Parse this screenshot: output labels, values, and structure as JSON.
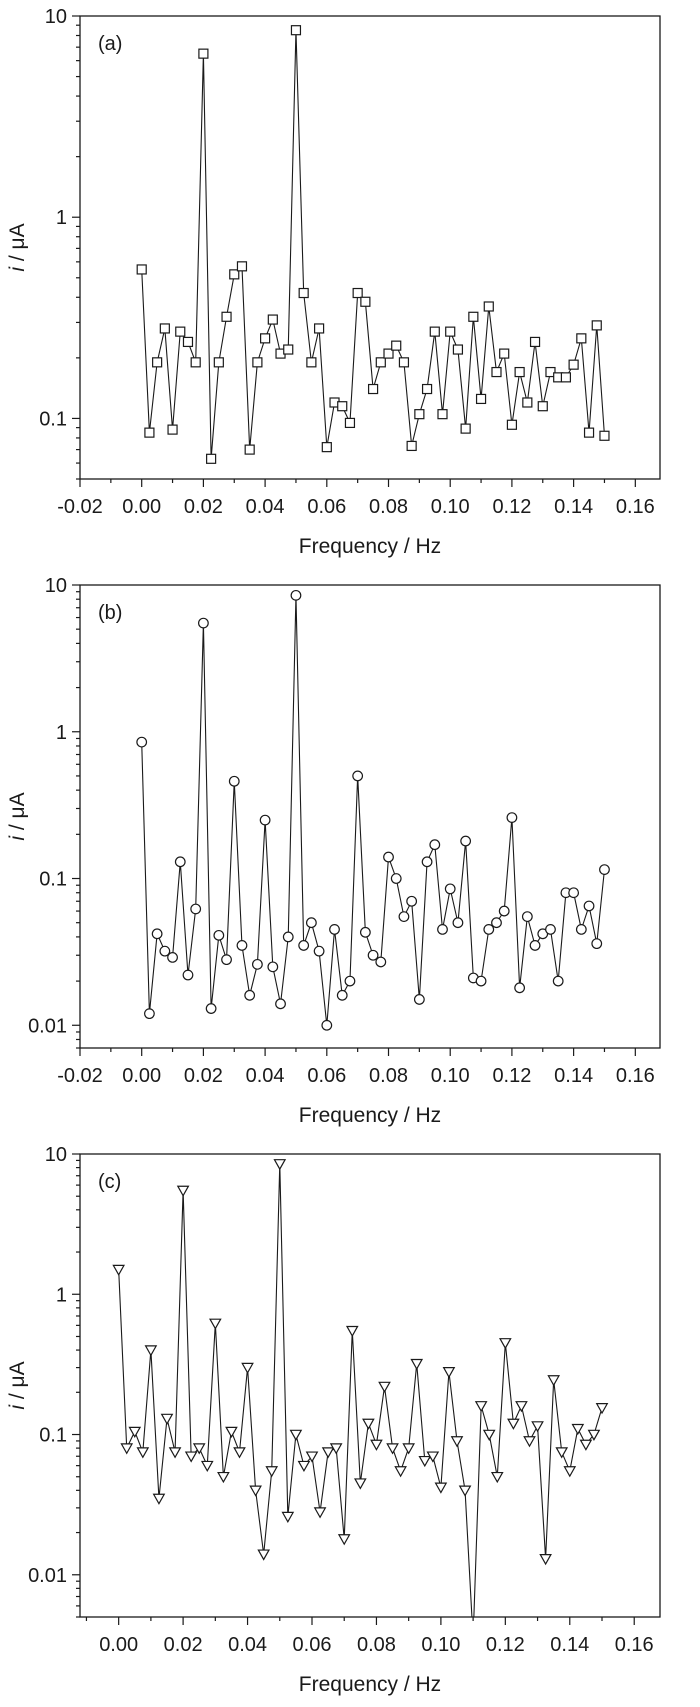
{
  "figure": {
    "background": "#ffffff",
    "line_color": "#1a1a1a",
    "marker_fill": "#ffffff"
  },
  "chart_data": [
    {
      "type": "line",
      "panel_label": "(a)",
      "marker": "square",
      "xlabel": "Frequency / Hz",
      "ylabel_italic": "i",
      "ylabel_rest": " / μA",
      "x_scale": "linear",
      "y_scale": "log",
      "grid": false,
      "legend": "none",
      "xlim": [
        -0.02,
        0.168
      ],
      "ylim": [
        0.05,
        10
      ],
      "x_ticks": [
        -0.02,
        0,
        0.02,
        0.04,
        0.06,
        0.08,
        0.1,
        0.12,
        0.14,
        0.16
      ],
      "x_tick_labels": [
        "-0.02",
        "0.00",
        "0.02",
        "0.04",
        "0.06",
        "0.08",
        "0.10",
        "0.12",
        "0.14",
        "0.16"
      ],
      "y_ticks": [
        0.1,
        1,
        10
      ],
      "y_tick_labels": [
        "0.1",
        "1",
        "10"
      ],
      "x": [
        0,
        0.0025,
        0.005,
        0.0075,
        0.01,
        0.0125,
        0.015,
        0.0175,
        0.02,
        0.0225,
        0.025,
        0.0275,
        0.03,
        0.0325,
        0.035,
        0.0375,
        0.04,
        0.0425,
        0.045,
        0.0475,
        0.05,
        0.0525,
        0.055,
        0.0575,
        0.06,
        0.0625,
        0.065,
        0.0675,
        0.07,
        0.0725,
        0.075,
        0.0775,
        0.08,
        0.0825,
        0.085,
        0.0875,
        0.09,
        0.0925,
        0.095,
        0.0975,
        0.1,
        0.1025,
        0.105,
        0.1075,
        0.11,
        0.1125,
        0.115,
        0.1175,
        0.12,
        0.1225,
        0.125,
        0.1275,
        0.13,
        0.1325,
        0.135,
        0.1375,
        0.14,
        0.1425,
        0.145,
        0.1475,
        0.15
      ],
      "y": [
        0.55,
        0.085,
        0.19,
        0.28,
        0.088,
        0.27,
        0.24,
        0.19,
        6.5,
        0.063,
        0.19,
        0.32,
        0.52,
        0.57,
        0.07,
        0.19,
        0.25,
        0.31,
        0.21,
        0.22,
        8.5,
        0.42,
        0.19,
        0.28,
        0.072,
        0.12,
        0.115,
        0.095,
        0.42,
        0.38,
        0.14,
        0.19,
        0.21,
        0.23,
        0.19,
        0.073,
        0.105,
        0.14,
        0.27,
        0.105,
        0.27,
        0.22,
        0.089,
        0.32,
        0.125,
        0.36,
        0.17,
        0.21,
        0.093,
        0.17,
        0.12,
        0.24,
        0.115,
        0.17,
        0.16,
        0.16,
        0.185,
        0.25,
        0.085,
        0.29,
        0.082
      ]
    },
    {
      "type": "line",
      "panel_label": "(b)",
      "marker": "circle",
      "xlabel": "Frequency / Hz",
      "ylabel_italic": "i",
      "ylabel_rest": " / μA",
      "x_scale": "linear",
      "y_scale": "log",
      "grid": false,
      "legend": "none",
      "xlim": [
        -0.02,
        0.168
      ],
      "ylim": [
        0.007,
        10
      ],
      "x_ticks": [
        -0.02,
        0,
        0.02,
        0.04,
        0.06,
        0.08,
        0.1,
        0.12,
        0.14,
        0.16
      ],
      "x_tick_labels": [
        "-0.02",
        "0.00",
        "0.02",
        "0.04",
        "0.06",
        "0.08",
        "0.10",
        "0.12",
        "0.14",
        "0.16"
      ],
      "y_ticks": [
        0.01,
        0.1,
        1,
        10
      ],
      "y_tick_labels": [
        "0.01",
        "0.1",
        "1",
        "10"
      ],
      "x": [
        0,
        0.0025,
        0.005,
        0.0075,
        0.01,
        0.0125,
        0.015,
        0.0175,
        0.02,
        0.0225,
        0.025,
        0.0275,
        0.03,
        0.0325,
        0.035,
        0.0375,
        0.04,
        0.0425,
        0.045,
        0.0475,
        0.05,
        0.0525,
        0.055,
        0.0575,
        0.06,
        0.0625,
        0.065,
        0.0675,
        0.07,
        0.0725,
        0.075,
        0.0775,
        0.08,
        0.0825,
        0.085,
        0.0875,
        0.09,
        0.0925,
        0.095,
        0.0975,
        0.1,
        0.1025,
        0.105,
        0.1075,
        0.11,
        0.1125,
        0.115,
        0.1175,
        0.12,
        0.1225,
        0.125,
        0.1275,
        0.13,
        0.1325,
        0.135,
        0.1375,
        0.14,
        0.1425,
        0.145,
        0.1475,
        0.15
      ],
      "y": [
        0.85,
        0.012,
        0.042,
        0.032,
        0.029,
        0.13,
        0.022,
        0.062,
        5.5,
        0.013,
        0.041,
        0.028,
        0.46,
        0.035,
        0.016,
        0.026,
        0.25,
        0.025,
        0.014,
        0.04,
        8.5,
        0.035,
        0.05,
        0.032,
        0.01,
        0.045,
        0.016,
        0.02,
        0.5,
        0.043,
        0.03,
        0.027,
        0.14,
        0.1,
        0.055,
        0.07,
        0.015,
        0.13,
        0.17,
        0.045,
        0.085,
        0.05,
        0.18,
        0.021,
        0.02,
        0.045,
        0.05,
        0.06,
        0.26,
        0.018,
        0.055,
        0.035,
        0.042,
        0.045,
        0.02,
        0.08,
        0.08,
        0.045,
        0.065,
        0.036,
        0.115
      ]
    },
    {
      "type": "line",
      "panel_label": "(c)",
      "marker": "triangle-down",
      "xlabel": "Frequency / Hz",
      "ylabel_italic": "i",
      "ylabel_rest": " / μA",
      "x_scale": "linear",
      "y_scale": "log",
      "grid": false,
      "legend": "none",
      "xlim": [
        -0.012,
        0.168
      ],
      "ylim": [
        0.005,
        10
      ],
      "x_ticks": [
        0,
        0.02,
        0.04,
        0.06,
        0.08,
        0.1,
        0.12,
        0.14,
        0.16
      ],
      "x_tick_labels": [
        "0.00",
        "0.02",
        "0.04",
        "0.06",
        "0.08",
        "0.10",
        "0.12",
        "0.14",
        "0.16"
      ],
      "y_ticks": [
        0.01,
        0.1,
        1,
        10
      ],
      "y_tick_labels": [
        "0.01",
        "0.1",
        "1",
        "10"
      ],
      "x": [
        0,
        0.0025,
        0.005,
        0.0075,
        0.01,
        0.0125,
        0.015,
        0.0175,
        0.02,
        0.0225,
        0.025,
        0.0275,
        0.03,
        0.0325,
        0.035,
        0.0375,
        0.04,
        0.0425,
        0.045,
        0.0475,
        0.05,
        0.0525,
        0.055,
        0.0575,
        0.06,
        0.0625,
        0.065,
        0.0675,
        0.07,
        0.0725,
        0.075,
        0.0775,
        0.08,
        0.0825,
        0.085,
        0.0875,
        0.09,
        0.0925,
        0.095,
        0.0975,
        0.1,
        0.1025,
        0.105,
        0.1075,
        0.11,
        0.1125,
        0.115,
        0.1175,
        0.12,
        0.1225,
        0.125,
        0.1275,
        0.13,
        0.1325,
        0.135,
        0.1375,
        0.14,
        0.1425,
        0.145,
        0.1475,
        0.15
      ],
      "y": [
        1.5,
        0.08,
        0.105,
        0.075,
        0.4,
        0.035,
        0.13,
        0.075,
        5.5,
        0.07,
        0.08,
        0.06,
        0.62,
        0.05,
        0.105,
        0.075,
        0.3,
        0.04,
        0.014,
        0.055,
        8.5,
        0.026,
        0.1,
        0.06,
        0.07,
        0.028,
        0.075,
        0.08,
        0.018,
        0.55,
        0.045,
        0.12,
        0.085,
        0.22,
        0.08,
        0.055,
        0.08,
        0.32,
        0.065,
        0.07,
        0.042,
        0.28,
        0.09,
        0.04,
        0.0035,
        0.16,
        0.1,
        0.05,
        0.45,
        0.12,
        0.16,
        0.09,
        0.115,
        0.013,
        0.245,
        0.075,
        0.055,
        0.11,
        0.085,
        0.1,
        0.155
      ]
    }
  ]
}
